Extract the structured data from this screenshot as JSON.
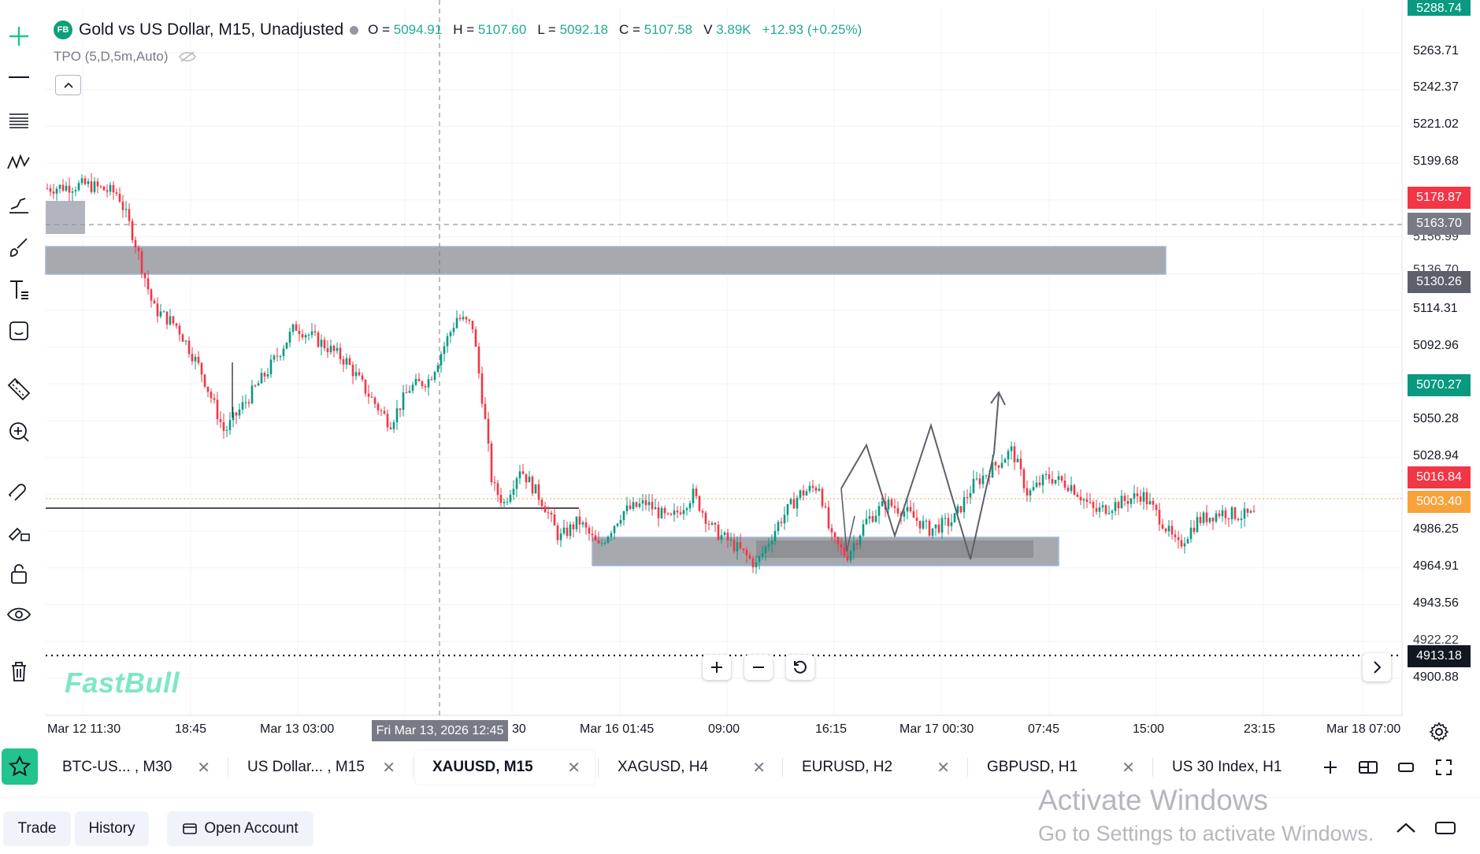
{
  "legend": {
    "badge": "FB",
    "symbol": "Gold vs US Dollar, M15, Unadjusted",
    "open_label": "O =",
    "open": "5094.91",
    "high_label": "H =",
    "high": "5107.60",
    "low_label": "L =",
    "low": "5092.18",
    "close_label": "C =",
    "close": "5107.58",
    "volume_label": "V",
    "volume": "3.89K",
    "change": "+12.93 (+0.25%)"
  },
  "indicator": {
    "label": "TPO (5,D,5m,Auto)",
    "visibility_icon": "eye-off-icon"
  },
  "price_axis": {
    "top_partial": "5288.74",
    "ticks": [
      "5263.71",
      "5242.37",
      "5221.02",
      "5199.68",
      "5114.31",
      "5092.96",
      "5050.28",
      "5028.94",
      "4986.25",
      "4964.91",
      "4943.56",
      "4900.88"
    ],
    "partial_ticks": [
      "5156.99",
      "5136.70",
      "4922.22"
    ],
    "tags": [
      {
        "value": "5178.87",
        "color": "#f23645"
      },
      {
        "value": "5163.70",
        "color": "#787b86"
      },
      {
        "value": "5130.26",
        "color": "#5d606b"
      },
      {
        "value": "5070.27",
        "color": "#089981"
      },
      {
        "value": "5016.84",
        "color": "#f23645"
      },
      {
        "value": "5003.40",
        "color": "#f7a23b"
      },
      {
        "value": "4913.18",
        "color": "#131722"
      }
    ]
  },
  "time_axis": {
    "ticks": [
      "Mar 12 11:30",
      "18:45",
      "Mar 13 03:00",
      "30",
      "Mar 16 01:45",
      "09:00",
      "16:15",
      "Mar 17 00:30",
      "07:45",
      "15:00",
      "23:15",
      "Mar 18 07:00"
    ],
    "crosshair": "Fri Mar 13, 2026 12:45"
  },
  "chart_data": {
    "type": "candlestick",
    "symbol": "XAUUSD",
    "timeframe": "M15",
    "y_range": [
      4890,
      5290
    ],
    "candles_ohlc_sample": [
      [
        5190,
        5195,
        5180,
        5188
      ],
      [
        5188,
        5192,
        5170,
        5175
      ],
      [
        5175,
        5185,
        5160,
        5165
      ],
      [
        5165,
        5170,
        5120,
        5130
      ],
      [
        5130,
        5135,
        5100,
        5105
      ],
      [
        5105,
        5110,
        5060,
        5075
      ],
      [
        5075,
        5095,
        5070,
        5090
      ],
      [
        5090,
        5120,
        5085,
        5115
      ],
      [
        5115,
        5118,
        5095,
        5100
      ],
      [
        5100,
        5105,
        5075,
        5080
      ],
      [
        5080,
        5095,
        5070,
        5090
      ],
      [
        5090,
        5120,
        5085,
        5115
      ],
      [
        5115,
        5120,
        5060,
        5065
      ],
      [
        5065,
        5070,
        5020,
        5030
      ],
      [
        5030,
        5050,
        5020,
        5045
      ],
      [
        5045,
        5048,
        5000,
        5010
      ],
      [
        5010,
        5030,
        4975,
        4990
      ],
      [
        4990,
        5025,
        4985,
        5015
      ],
      [
        5015,
        5025,
        4995,
        5000
      ],
      [
        5000,
        5010,
        4980,
        4985
      ],
      [
        4985,
        5030,
        4980,
        5025
      ],
      [
        5025,
        5035,
        4990,
        4995
      ],
      [
        4995,
        5010,
        4980,
        5000
      ],
      [
        5000,
        5025,
        4995,
        5020
      ],
      [
        5020,
        5045,
        5010,
        5040
      ],
      [
        5040,
        5045,
        5005,
        5010
      ],
      [
        5010,
        5030,
        4995,
        5015
      ],
      [
        5015,
        5020,
        4995,
        5000
      ],
      [
        5000,
        5010,
        4985,
        5005
      ],
      [
        5005,
        5012,
        4998,
        5003
      ]
    ],
    "zones": [
      {
        "name": "supply-zone",
        "top": 5140,
        "bottom": 5125
      },
      {
        "name": "demand-zone",
        "top": 4980,
        "bottom": 4965
      }
    ],
    "horizontal_lines": [
      {
        "name": "dashed-price-line",
        "value": 5163.7
      },
      {
        "name": "current-price-line",
        "value": 5003.4
      },
      {
        "name": "dotted-line",
        "value": 4913.18
      },
      {
        "name": "solid-level-line",
        "value": 4997
      }
    ]
  },
  "watermark": "FastBull",
  "tabs": [
    {
      "label": "BTC-US... , M30",
      "active": false
    },
    {
      "label": "US Dollar... , M15",
      "active": false
    },
    {
      "label": "XAUUSD, M15",
      "active": true
    },
    {
      "label": "XAGUSD, H4",
      "active": false
    },
    {
      "label": "EURUSD, H2",
      "active": false
    },
    {
      "label": "GBPUSD, H1",
      "active": false
    },
    {
      "label": "US 30 Index, H1",
      "active": false
    }
  ],
  "bottom": {
    "trade": "Trade",
    "history": "History",
    "open_account": "Open Account"
  },
  "activate_windows": {
    "title": "Activate Windows",
    "subtitle": "Go to Settings to activate Windows."
  },
  "colors": {
    "up": "#089981",
    "down": "#f23645",
    "zone": "#a7a9ae",
    "accent": "#22c38e"
  }
}
